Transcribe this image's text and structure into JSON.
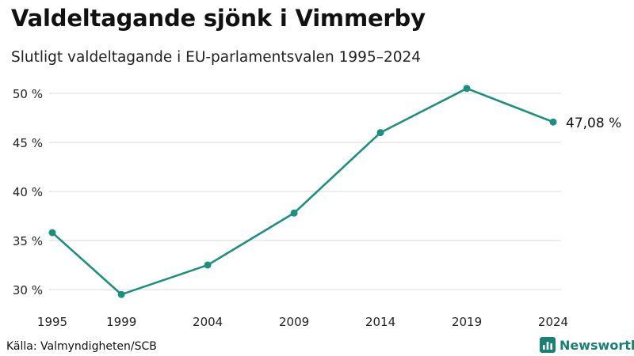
{
  "header": {
    "title": "Valdeltagande sjönk i Vimmerby",
    "subtitle": "Slutligt valdeltagande i EU-parlamentsvalen 1995–2024"
  },
  "footer": {
    "source": "Källa: Valmyndigheten/SCB",
    "brand": "Newsworthy",
    "brand_icon": "bar-chart-logo-icon"
  },
  "colors": {
    "line": "#1d8f80",
    "grid": "#d9d9d9",
    "brand": "#1a7f74"
  },
  "chart_data": {
    "type": "line",
    "title": "Valdeltagande sjönk i Vimmerby",
    "subtitle": "Slutligt valdeltagande i EU-parlamentsvalen 1995–2024",
    "xlabel": "",
    "ylabel": "",
    "x": [
      1995,
      1999,
      2004,
      2009,
      2014,
      2019,
      2024
    ],
    "x_tick_labels": [
      "1995",
      "1999",
      "2004",
      "2009",
      "2014",
      "2019",
      "2024"
    ],
    "series": [
      {
        "name": "Valdeltagande",
        "values": [
          35.8,
          29.5,
          32.5,
          37.8,
          46.0,
          50.5,
          47.08
        ]
      }
    ],
    "ylim": [
      29,
      51.5
    ],
    "y_ticks": [
      30,
      35,
      40,
      45,
      50
    ],
    "y_tick_labels": [
      "30 %",
      "35 %",
      "40 %",
      "45 %",
      "50 %"
    ],
    "grid": true,
    "end_label": "47,08 %"
  }
}
